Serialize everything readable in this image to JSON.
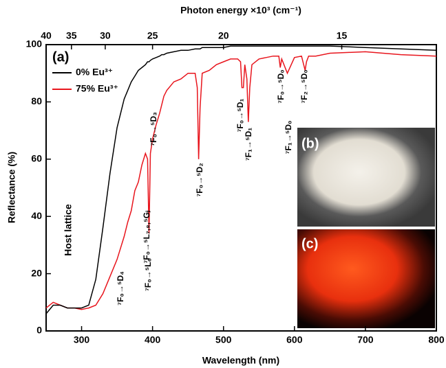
{
  "chart_data": {
    "type": "line",
    "title": "Photon energy ×10³ (cm⁻¹)",
    "x_label": "Wavelength (nm)",
    "y_label": "Reflectance (%)",
    "panel_label": "(a)",
    "x": [
      250,
      260,
      270,
      280,
      290,
      300,
      310,
      320,
      330,
      340,
      350,
      360,
      365,
      370,
      375,
      380,
      385,
      390,
      393,
      395,
      397,
      400,
      405,
      410,
      413,
      416,
      420,
      430,
      440,
      450,
      460,
      463,
      465,
      467,
      470,
      480,
      490,
      500,
      510,
      520,
      524,
      526,
      528,
      530,
      533,
      535,
      537,
      540,
      550,
      560,
      570,
      578,
      580,
      582,
      590,
      600,
      610,
      613,
      615,
      617,
      620,
      630,
      650,
      700,
      750,
      800
    ],
    "series": [
      {
        "name": "0% Eu³⁺",
        "color": "#000000",
        "values": [
          6,
          9,
          9,
          8,
          8,
          8,
          9,
          18,
          36,
          55,
          71,
          81,
          84,
          87,
          89,
          91,
          92,
          93,
          94,
          94,
          94.5,
          95,
          95.5,
          96,
          96.5,
          96.5,
          97,
          97.5,
          98,
          98,
          98.5,
          98.5,
          98.5,
          98.5,
          99,
          99,
          99,
          99,
          99.5,
          99.5,
          99.5,
          99.5,
          99.5,
          99.5,
          99.5,
          99.5,
          99.5,
          99.5,
          99.5,
          99.5,
          99.5,
          99.5,
          99.5,
          99.5,
          99.5,
          99.5,
          99.5,
          99.5,
          99.5,
          99.5,
          99.5,
          99.5,
          99.5,
          99,
          98.5,
          98
        ]
      },
      {
        "name": "75% Eu³⁺",
        "color": "#e8141c",
        "values": [
          8,
          10,
          9,
          8,
          8,
          7.5,
          8,
          9,
          13,
          19,
          25,
          33,
          38,
          42,
          49,
          52,
          58,
          62,
          60,
          34,
          62,
          67,
          72,
          76,
          79,
          82,
          84,
          87,
          88,
          90,
          90,
          85,
          60,
          78,
          90,
          91,
          93,
          94,
          95,
          95,
          94,
          85,
          85,
          93,
          88,
          73,
          85,
          93,
          95,
          95.5,
          96,
          96,
          92,
          95,
          90,
          95.5,
          96,
          93,
          91,
          94,
          96,
          96,
          97,
          97.5,
          96.5,
          96
        ]
      }
    ],
    "xlim": [
      250,
      800
    ],
    "xticks": [
      300,
      400,
      500,
      600,
      700,
      800
    ],
    "ylim": [
      0,
      100
    ],
    "yticks": [
      0,
      20,
      40,
      60,
      80,
      100
    ],
    "x2ticks": [
      40,
      35,
      30,
      25,
      20,
      15
    ],
    "annotations": [
      "Host lattice",
      "⁷F₀→⁵D₄",
      "⁷F₀→⁵L₇,₈,⁵Gⱼ",
      "⁷F₀→⁵L₆",
      "⁷F₀→⁵D₃",
      "⁷F₀→⁵D₂",
      "⁷F₀→⁵D₁",
      "⁷F₁→⁵D₁",
      "⁷F₀→⁵D₀",
      "⁷F₁→⁵D₀",
      "⁷F₂→⁵D₀"
    ],
    "insets": [
      "(b)",
      "(c)"
    ]
  }
}
